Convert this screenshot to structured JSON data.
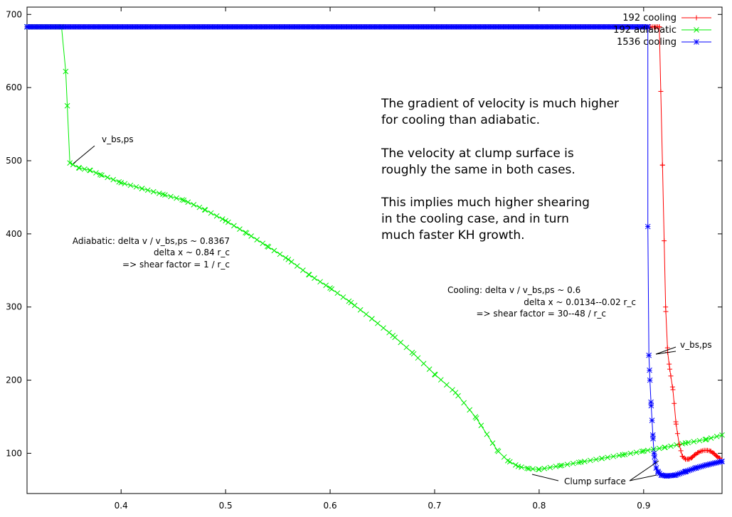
{
  "chart_data": {
    "type": "line",
    "title": "",
    "xlabel": "",
    "ylabel": "",
    "xlim": [
      0.31,
      0.975
    ],
    "ylim": [
      45,
      710
    ],
    "x_ticks": [
      0.4,
      0.5,
      0.6,
      0.7,
      0.8,
      0.9
    ],
    "x_tick_labels": [
      "0.4",
      "0.5",
      "0.6",
      "0.7",
      "0.8",
      "0.9"
    ],
    "y_ticks": [
      100,
      200,
      300,
      400,
      500,
      600,
      700
    ],
    "y_tick_labels": [
      "100",
      "200",
      "300",
      "400",
      "500",
      "600",
      "700"
    ],
    "grid": false,
    "legend_position": "top-right",
    "series": [
      {
        "name": "192 cooling",
        "color": "#ff0000",
        "marker": "plus",
        "points": [
          [
            0.31,
            683
          ],
          [
            0.91,
            683
          ],
          [
            0.913,
            683
          ],
          [
            0.915,
            683
          ],
          [
            0.918,
            494
          ],
          [
            0.921,
            300
          ],
          [
            0.923,
            238
          ],
          [
            0.925,
            215
          ],
          [
            0.928,
            187
          ],
          [
            0.931,
            140
          ],
          [
            0.934,
            112
          ],
          [
            0.937,
            96
          ],
          [
            0.94,
            92
          ],
          [
            0.943,
            92
          ],
          [
            0.946,
            94
          ],
          [
            0.949,
            98
          ],
          [
            0.952,
            101
          ],
          [
            0.955,
            103
          ],
          [
            0.958,
            104
          ],
          [
            0.961,
            104
          ],
          [
            0.964,
            103
          ],
          [
            0.967,
            100
          ],
          [
            0.97,
            96
          ],
          [
            0.973,
            93
          ]
        ]
      },
      {
        "name": "192 adiabatic",
        "color": "#00ee00",
        "marker": "x",
        "points": [
          [
            0.31,
            683
          ],
          [
            0.343,
            683
          ],
          [
            0.347,
            622
          ],
          [
            0.351,
            497
          ],
          [
            0.36,
            490
          ],
          [
            0.37,
            487
          ],
          [
            0.38,
            481
          ],
          [
            0.4,
            470
          ],
          [
            0.42,
            462
          ],
          [
            0.44,
            454
          ],
          [
            0.46,
            446
          ],
          [
            0.48,
            433
          ],
          [
            0.5,
            418
          ],
          [
            0.52,
            401
          ],
          [
            0.54,
            383
          ],
          [
            0.56,
            365
          ],
          [
            0.58,
            344
          ],
          [
            0.6,
            326
          ],
          [
            0.62,
            306
          ],
          [
            0.64,
            284
          ],
          [
            0.66,
            261
          ],
          [
            0.68,
            236
          ],
          [
            0.7,
            208
          ],
          [
            0.72,
            183
          ],
          [
            0.74,
            148
          ],
          [
            0.76,
            104
          ],
          [
            0.77,
            90
          ],
          [
            0.78,
            82
          ],
          [
            0.79,
            79
          ],
          [
            0.8,
            78
          ],
          [
            0.82,
            83
          ],
          [
            0.84,
            88
          ],
          [
            0.86,
            93
          ],
          [
            0.88,
            98
          ],
          [
            0.9,
            103
          ],
          [
            0.92,
            108
          ],
          [
            0.94,
            114
          ],
          [
            0.96,
            119
          ],
          [
            0.975,
            125
          ]
        ]
      },
      {
        "name": "1536 cooling",
        "color": "#0000ff",
        "marker": "asterisk",
        "points": [
          [
            0.31,
            683
          ],
          [
            0.904,
            683
          ],
          [
            0.904,
            410
          ],
          [
            0.905,
            234
          ],
          [
            0.906,
            200
          ],
          [
            0.907,
            170
          ],
          [
            0.908,
            145
          ],
          [
            0.909,
            120
          ],
          [
            0.91,
            100
          ],
          [
            0.911,
            88
          ],
          [
            0.912,
            80
          ],
          [
            0.914,
            74
          ],
          [
            0.917,
            70
          ],
          [
            0.922,
            69
          ],
          [
            0.93,
            70
          ],
          [
            0.94,
            75
          ],
          [
            0.95,
            80
          ],
          [
            0.96,
            84
          ],
          [
            0.975,
            89
          ]
        ]
      }
    ],
    "annotations": {
      "v_bs_left": "v_bs,ps",
      "v_bs_right": "v_bs,ps",
      "adiabatic_line1": "Adiabatic: delta v / v_bs,ps ~ 0.8367",
      "adiabatic_line2": "delta x ~ 0.84 r_c",
      "adiabatic_line3": "=> shear factor = 1 / r_c",
      "cooling_line1": "Cooling: delta v / v_bs,ps ~ 0.6",
      "cooling_line2": "delta x ~ 0.0134--0.02 r_c",
      "cooling_line3": "=> shear factor = 30--48 / r_c",
      "clump_surface": "Clump surface",
      "note": [
        "The gradient of velocity is much higher",
        "for cooling than adiabatic.",
        "",
        "The velocity at clump surface is",
        "roughly the same in both cases.",
        "",
        "This implies much higher shearing",
        "in the cooling case, and in turn",
        "much faster KH growth."
      ]
    }
  }
}
